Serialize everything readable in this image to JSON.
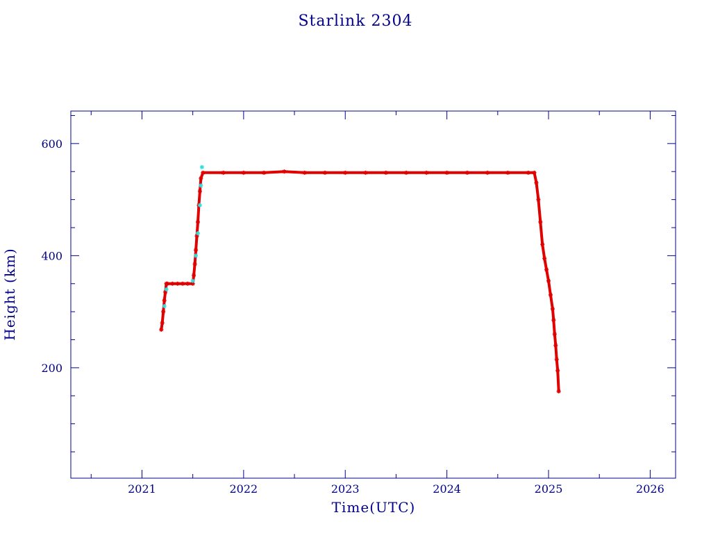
{
  "chart_data": {
    "type": "scatter",
    "title": "Starlink 2304",
    "xlabel": "Time(UTC)",
    "ylabel": "Height (km)",
    "xlim": [
      2020.3,
      2026.25
    ],
    "ylim": [
      3,
      658
    ],
    "x_ticks": [
      {
        "value": 2021,
        "label": "2021"
      },
      {
        "value": 2022,
        "label": "2022"
      },
      {
        "value": 2023,
        "label": "2023"
      },
      {
        "value": 2024,
        "label": "2024"
      },
      {
        "value": 2025,
        "label": "2025"
      },
      {
        "value": 2026,
        "label": "2026"
      }
    ],
    "y_ticks": [
      {
        "value": 200,
        "label": "200"
      },
      {
        "value": 400,
        "label": "400"
      },
      {
        "value": 600,
        "label": "600"
      }
    ],
    "grid": false,
    "colors": {
      "axis": "#00008b",
      "primary": "#e00000",
      "secondary": "#30e0e0"
    },
    "series": [
      {
        "color": "#e00000",
        "x": [
          2021.19,
          2021.2,
          2021.21,
          2021.22,
          2021.23,
          2021.24,
          2021.25,
          2021.3,
          2021.35,
          2021.4,
          2021.45,
          2021.5,
          2021.51,
          2021.52,
          2021.53,
          2021.54,
          2021.55,
          2021.56,
          2021.57,
          2021.58,
          2021.6,
          2021.8,
          2022.0,
          2022.2,
          2022.4,
          2022.6,
          2022.8,
          2023.0,
          2023.2,
          2023.4,
          2023.6,
          2023.8,
          2024.0,
          2024.2,
          2024.4,
          2024.6,
          2024.8,
          2024.86,
          2024.88,
          2024.9,
          2024.92,
          2024.94,
          2024.96,
          2024.98,
          2025.0,
          2025.02,
          2025.04,
          2025.05,
          2025.06,
          2025.07,
          2025.08,
          2025.09,
          2025.1
        ],
        "y": [
          268,
          280,
          300,
          320,
          335,
          350,
          350,
          350,
          350,
          350,
          350,
          350,
          365,
          385,
          410,
          435,
          460,
          490,
          515,
          538,
          548,
          548,
          548,
          548,
          550,
          548,
          548,
          548,
          548,
          548,
          548,
          548,
          548,
          548,
          548,
          548,
          548,
          548,
          530,
          500,
          460,
          420,
          395,
          375,
          355,
          330,
          305,
          285,
          260,
          240,
          215,
          195,
          158
        ]
      },
      {
        "color": "#30e0e0",
        "x": [
          2021.22,
          2021.24,
          2021.5,
          2021.53,
          2021.55,
          2021.57,
          2021.58,
          2021.59
        ],
        "y": [
          310,
          340,
          355,
          400,
          440,
          490,
          525,
          558
        ]
      }
    ]
  }
}
